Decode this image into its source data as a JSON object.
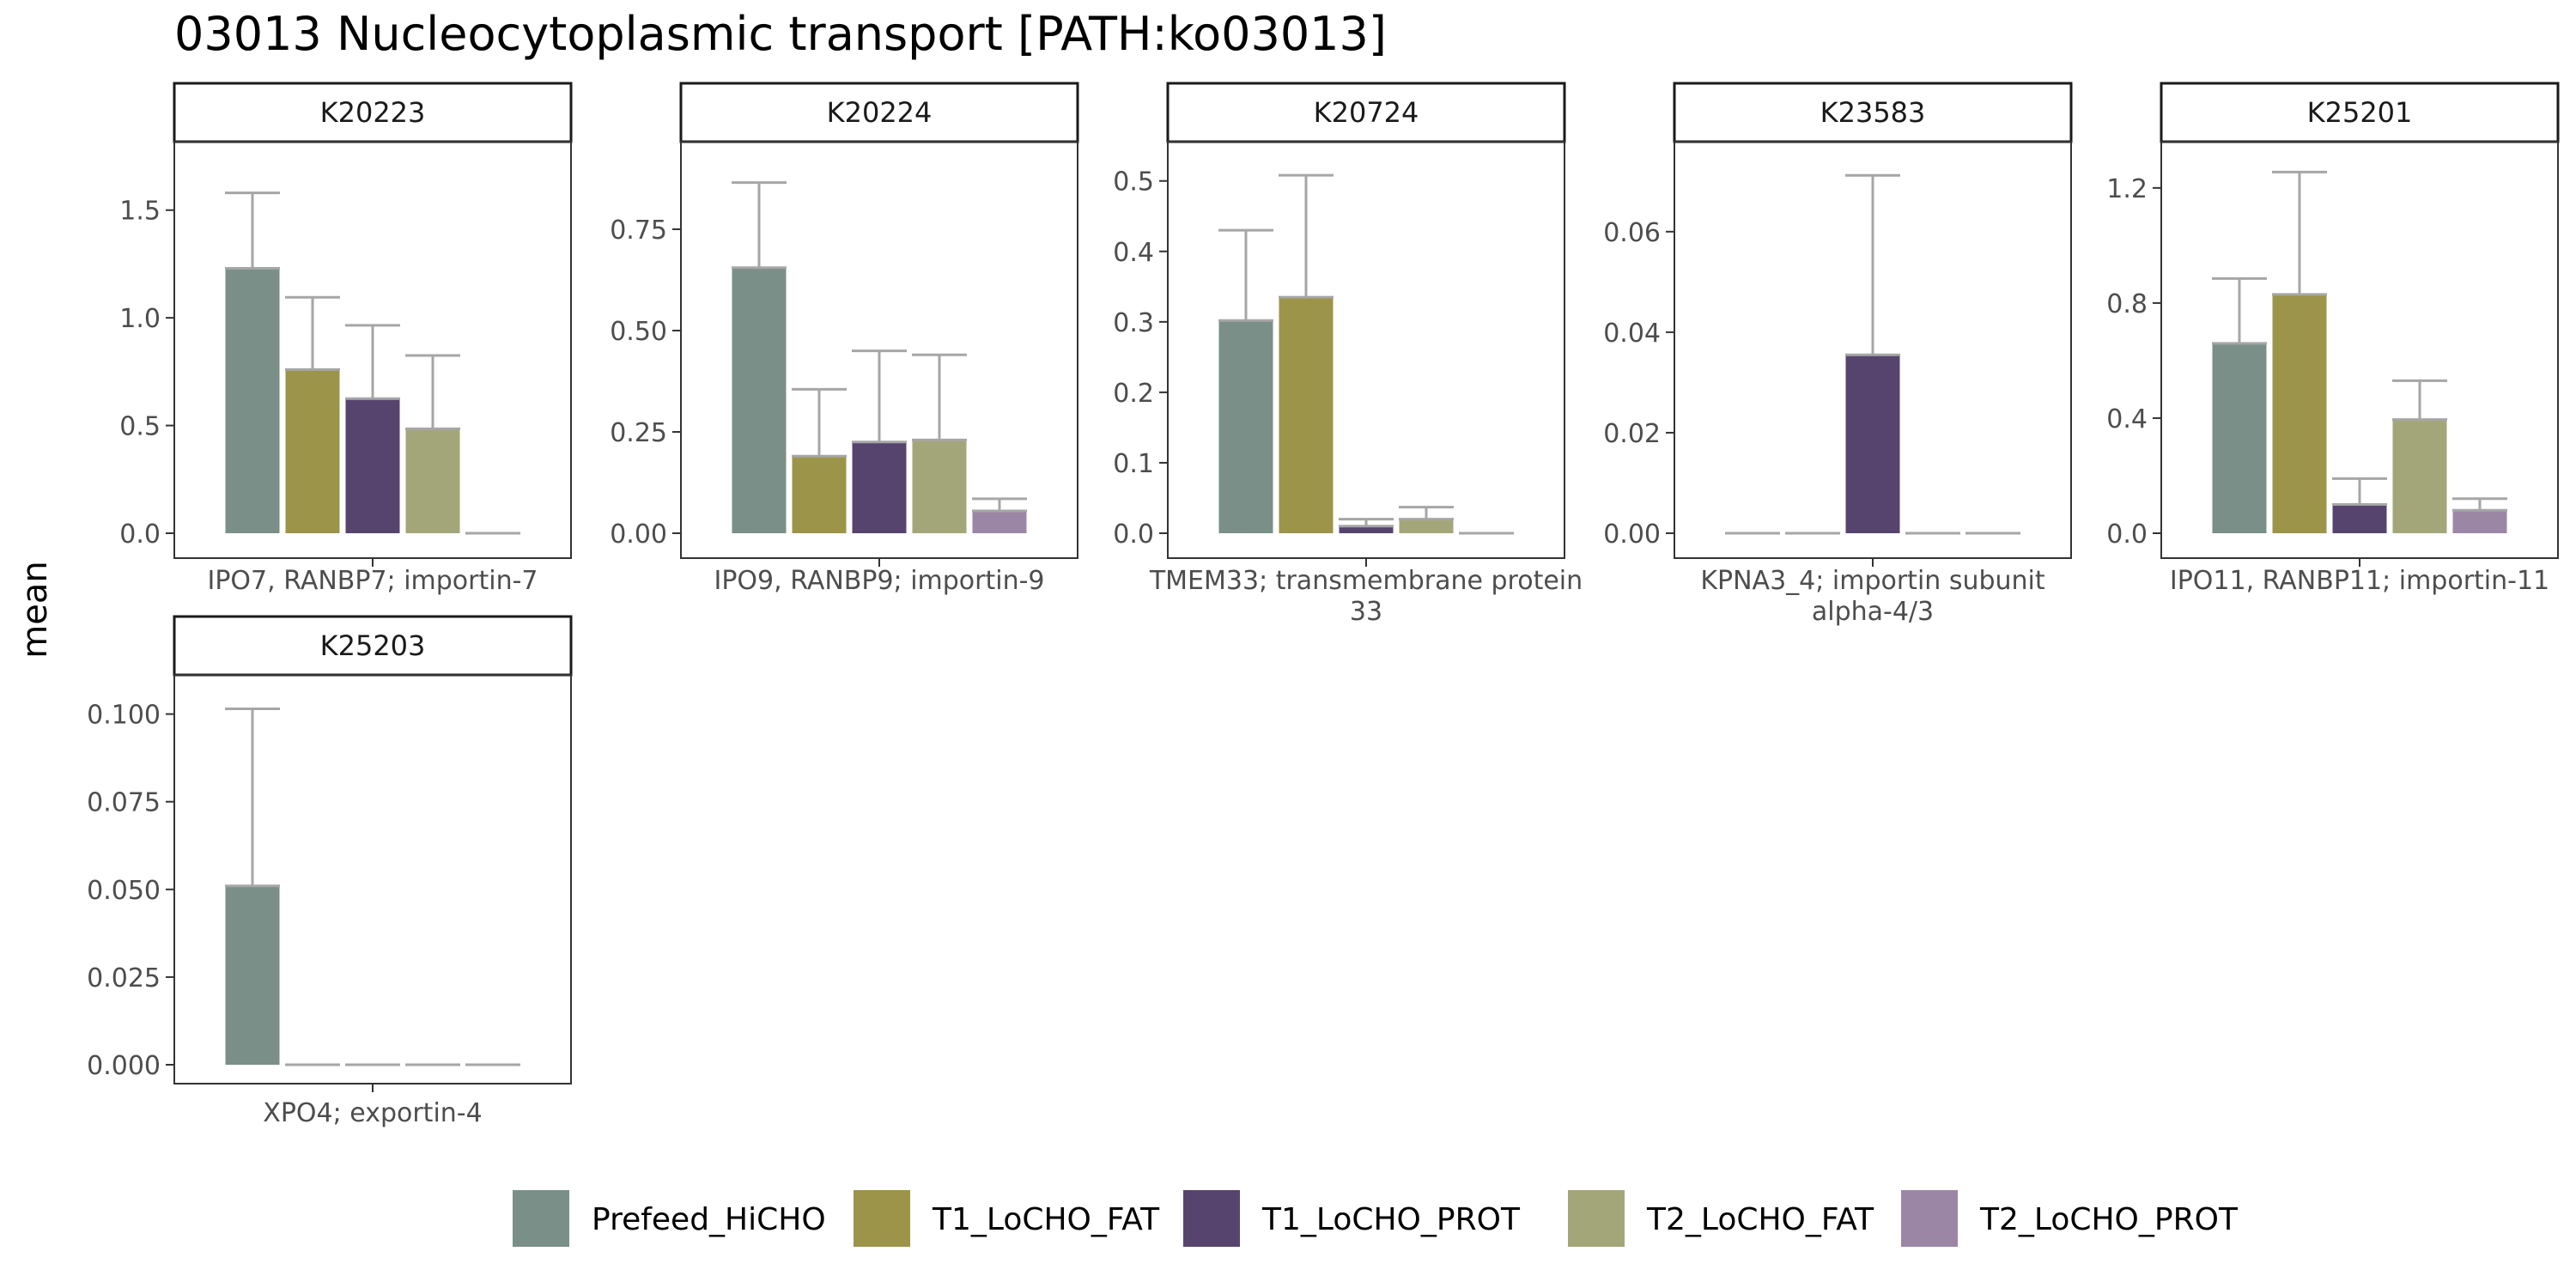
{
  "chart_data": {
    "type": "bar",
    "title": "03013 Nucleocytoplasmic transport [PATH:ko03013]",
    "ylabel": "mean",
    "xlabel": "",
    "legend_position": "bottom",
    "grid": false,
    "groups": [
      {
        "name": "Prefeed_HiCHO",
        "color": "#7A8F87"
      },
      {
        "name": "T1_LoCHO_FAT",
        "color": "#9C9448"
      },
      {
        "name": "T1_LoCHO_PROT",
        "color": "#56446E"
      },
      {
        "name": "T2_LoCHO_FAT",
        "color": "#A3A678"
      },
      {
        "name": "T2_LoCHO_PROT",
        "color": "#9C86A6"
      }
    ],
    "panels": [
      {
        "id": "K20223",
        "category": [
          "IPO7, RANBP7; importin-7"
        ],
        "ylim": [
          0,
          1.75
        ],
        "ticks": [
          0,
          0.5,
          1,
          1.5
        ],
        "tick_labels": [
          "0.0",
          "0.5",
          "1.0",
          "1.5"
        ],
        "means": [
          1.23,
          0.76,
          0.625,
          0.485,
          0.0
        ],
        "err_upper": [
          1.58,
          1.095,
          0.965,
          0.825,
          0.0
        ]
      },
      {
        "id": "K20224",
        "category": [
          "IPO9, RANBP9; importin-9"
        ],
        "ylim": [
          0,
          0.93
        ],
        "ticks": [
          0,
          0.25,
          0.5,
          0.75
        ],
        "tick_labels": [
          "0.00",
          "0.25",
          "0.50",
          "0.75"
        ],
        "means": [
          0.655,
          0.19,
          0.225,
          0.23,
          0.055
        ],
        "err_upper": [
          0.865,
          0.355,
          0.45,
          0.44,
          0.085
        ]
      },
      {
        "id": "K20724",
        "category": [
          "TMEM33; transmembrane protein",
          "33"
        ],
        "ylim": [
          0,
          0.535
        ],
        "ticks": [
          0,
          0.1,
          0.2,
          0.3,
          0.4,
          0.5
        ],
        "tick_labels": [
          "0.0",
          "0.1",
          "0.2",
          "0.3",
          "0.4",
          "0.5"
        ],
        "means": [
          0.302,
          0.335,
          0.01,
          0.02,
          0.0
        ],
        "err_upper": [
          0.43,
          0.508,
          0.02,
          0.037,
          0.0
        ]
      },
      {
        "id": "K23583",
        "category": [
          "KPNA3_4; importin subunit",
          "alpha-4/3"
        ],
        "ylim": [
          0,
          0.075
        ],
        "ticks": [
          0,
          0.02,
          0.04,
          0.06
        ],
        "tick_labels": [
          "0.00",
          "0.02",
          "0.04",
          "0.06"
        ],
        "means": [
          0.0,
          0.0,
          0.0355,
          0.0,
          0.0
        ],
        "err_upper": [
          0.0,
          0.0,
          0.0712,
          0.0,
          0.0
        ]
      },
      {
        "id": "K25201",
        "category": [
          "IPO11, RANBP11; importin-11"
        ],
        "ylim": [
          0,
          1.31
        ],
        "ticks": [
          0,
          0.4,
          0.8,
          1.2
        ],
        "tick_labels": [
          "0.0",
          "0.4",
          "0.8",
          "1.2"
        ],
        "means": [
          0.66,
          0.83,
          0.1,
          0.395,
          0.08
        ],
        "err_upper": [
          0.885,
          1.255,
          0.19,
          0.53,
          0.12
        ]
      },
      {
        "id": "K25203",
        "category": [
          "XPO4; exportin-4"
        ],
        "ylim": [
          0,
          0.107
        ],
        "ticks": [
          0,
          0.025,
          0.05,
          0.075,
          0.1
        ],
        "tick_labels": [
          "0.000",
          "0.025",
          "0.050",
          "0.075",
          "0.100"
        ],
        "means": [
          0.051,
          0.0,
          0.0,
          0.0,
          0.0
        ],
        "err_upper": [
          0.1015,
          0.0,
          0.0,
          0.0,
          0.0
        ]
      }
    ]
  }
}
